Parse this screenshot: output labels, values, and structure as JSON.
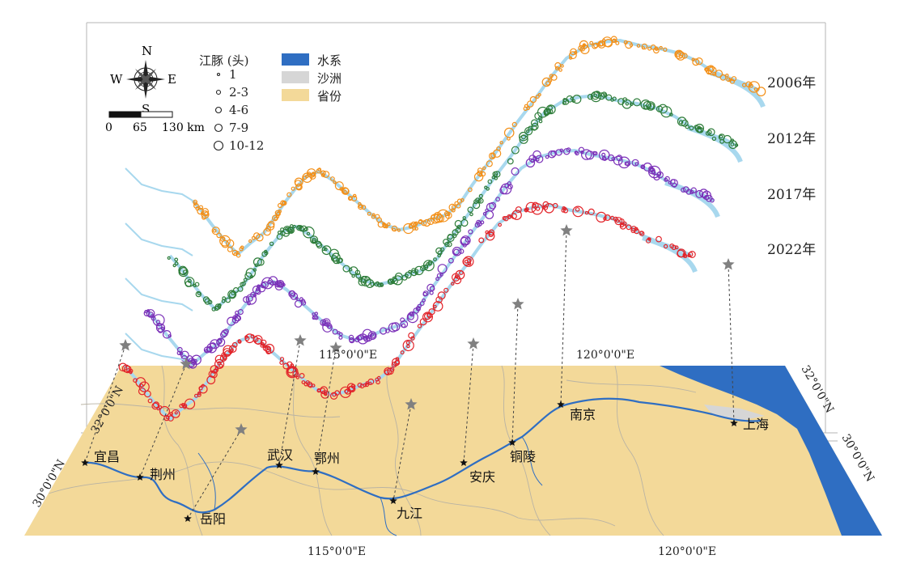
{
  "compass": {
    "n": "N",
    "s": "S",
    "e": "E",
    "w": "W"
  },
  "scalebar": {
    "ticks": [
      "0",
      "65",
      "130 km"
    ]
  },
  "legend_size": {
    "title": "江豚 (头)",
    "classes": [
      {
        "label": "1"
      },
      {
        "label": "2-3"
      },
      {
        "label": "4-6"
      },
      {
        "label": "7-9"
      },
      {
        "label": "10-12"
      }
    ]
  },
  "legend_fill": [
    {
      "label": "水系",
      "color": "#2f6ec2"
    },
    {
      "label": "沙洲",
      "color": "#d6d6d6"
    },
    {
      "label": "省份",
      "color": "#f3d999"
    }
  ],
  "layers": [
    {
      "year": "2006年",
      "color": "#f39019"
    },
    {
      "year": "2012年",
      "color": "#2e7d3a"
    },
    {
      "year": "2017年",
      "color": "#7b30b8"
    },
    {
      "year": "2022年",
      "color": "#e2242a"
    }
  ],
  "coordinates": {
    "lon_top_1": "115°0'0\"E",
    "lon_top_2": "120°0'0\"E",
    "lon_bottom_1": "115°0'0\"E",
    "lon_bottom_2": "120°0'0\"E",
    "lat_left_1": "32°0'0\"N",
    "lat_left_2": "30°0'0\"N",
    "lat_right_1": "32°0'0\"N",
    "lat_right_2": "30°0'0\"N"
  },
  "cities": [
    {
      "name": "宜昌"
    },
    {
      "name": "荆州"
    },
    {
      "name": "岳阳"
    },
    {
      "name": "武汉"
    },
    {
      "name": "鄂州"
    },
    {
      "name": "九江"
    },
    {
      "name": "安庆"
    },
    {
      "name": "铜陵"
    },
    {
      "name": "南京"
    },
    {
      "name": "上海"
    }
  ],
  "colors": {
    "map": "#f3d999",
    "water": "#2f6ec2",
    "river_light": "#a8d8ee",
    "star": "#808080"
  }
}
